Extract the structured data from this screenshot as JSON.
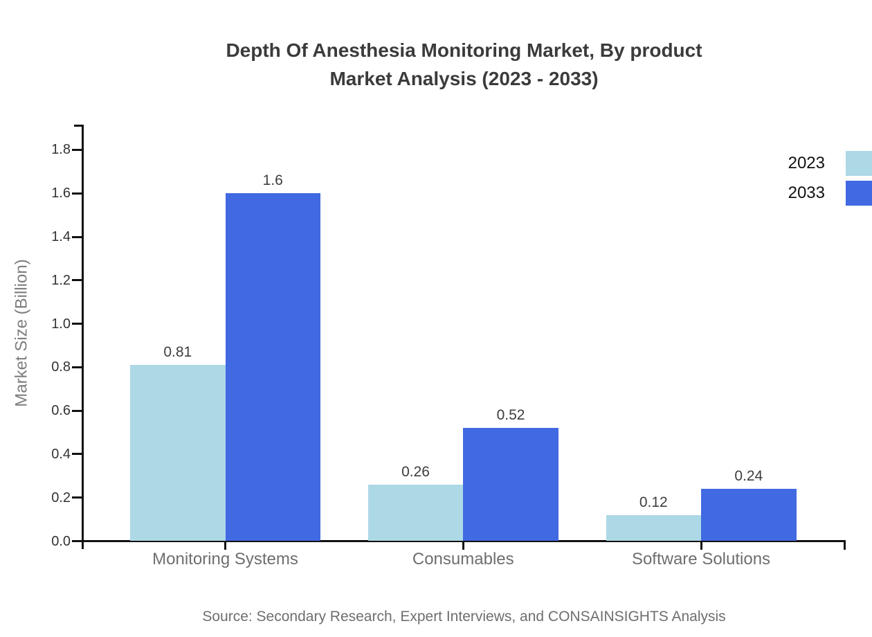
{
  "title": {
    "line1": "Depth Of Anesthesia Monitoring Market, By product",
    "line2": "Market Analysis (2023 - 2033)"
  },
  "source": "Source: Secondary Research, Expert Interviews, and CONSAINSIGHTS Analysis",
  "chart_data": {
    "type": "bar",
    "title": "Depth Of Anesthesia Monitoring Market, By product Market Analysis (2023 - 2033)",
    "categories": [
      "Monitoring Systems",
      "Consumables",
      "Software Solutions"
    ],
    "series": [
      {
        "name": "2023",
        "color": "#ADD8E6",
        "values": [
          0.81,
          0.26,
          0.12
        ]
      },
      {
        "name": "2033",
        "color": "#4169E1",
        "values": [
          1.6,
          0.52,
          0.24
        ]
      }
    ],
    "value_labels": [
      [
        "0.81",
        "0.26",
        "0.12"
      ],
      [
        "1.6",
        "0.52",
        "0.24"
      ]
    ],
    "xlabel": "",
    "ylabel": "Market Size (Billion)",
    "ylim": [
      0,
      1.9
    ],
    "yticks": [
      0.0,
      0.2,
      0.4,
      0.6,
      0.8,
      1.0,
      1.2,
      1.4,
      1.6,
      1.8
    ],
    "grid": false,
    "legend_position": "outside-upper-right"
  }
}
